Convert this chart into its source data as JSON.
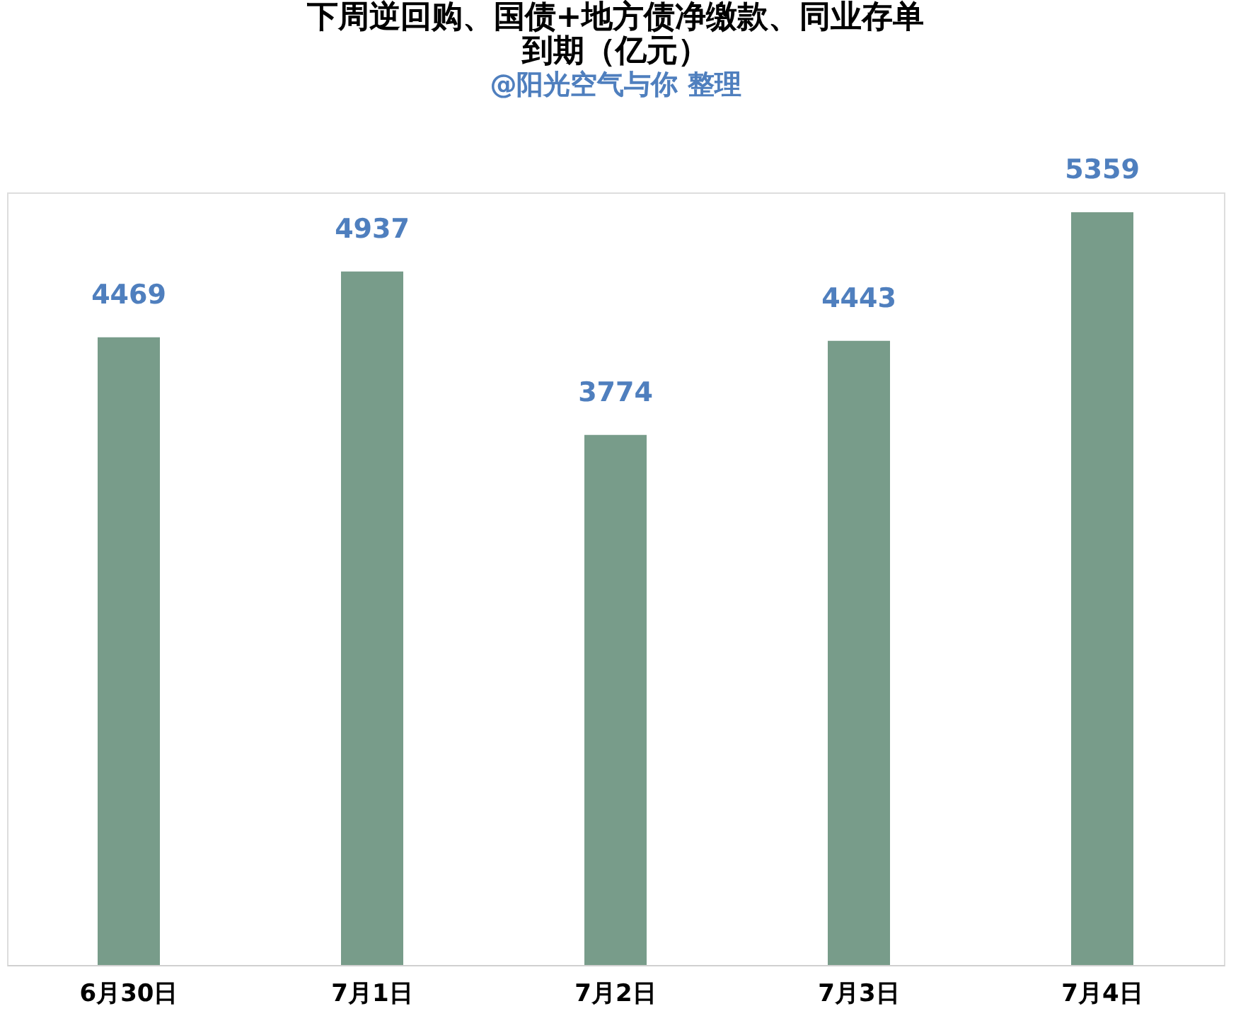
{
  "chart_data": {
    "type": "bar",
    "title": [
      "下周逆回购、国债+地方债净缴款、同业存单",
      "到期（亿元）"
    ],
    "subtitle": "@阳光空气与你  整理",
    "categories": [
      "6月30日",
      "7月1日",
      "7月2日",
      "7月3日",
      "7月4日"
    ],
    "values": [
      4469,
      4937,
      3774,
      4443,
      5359
    ],
    "color": "#789c8a",
    "data_labels": true,
    "grid": false
  }
}
